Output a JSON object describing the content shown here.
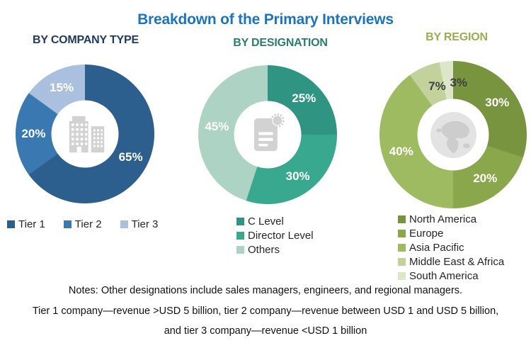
{
  "title": {
    "text": "Breakdown of the Primary Interviews",
    "color": "#1B75BC"
  },
  "chart_data": [
    {
      "type": "donut",
      "title": "BY COMPANY TYPE",
      "title_color": "#1F3A5F",
      "icon": "buildings-icon",
      "legend_position": "bottom-horizontal",
      "slices": [
        {
          "label": "Tier 1",
          "value": 65,
          "unit": "%",
          "color": "#2D5F8E",
          "label_color": "#FFFFFF"
        },
        {
          "label": "Tier 2",
          "value": 20,
          "unit": "%",
          "color": "#3A78B2",
          "label_color": "#FFFFFF"
        },
        {
          "label": "Tier 3",
          "value": 15,
          "unit": "%",
          "color": "#ABC0DE",
          "label_color": "#FFFFFF"
        }
      ]
    },
    {
      "type": "donut",
      "title": "BY DESIGNATION",
      "title_color": "#2B7D6C",
      "icon": "certificate-icon",
      "legend_position": "bottom-vertical",
      "slices": [
        {
          "label": "C Level",
          "value": 25,
          "unit": "%",
          "color": "#2F9481",
          "label_color": "#FFFFFF"
        },
        {
          "label": "Director Level",
          "value": 30,
          "unit": "%",
          "color": "#38A98E",
          "label_color": "#FFFFFF"
        },
        {
          "label": "Others",
          "value": 45,
          "unit": "%",
          "color": "#ADD3C5",
          "label_color": "#FFFFFF"
        }
      ]
    },
    {
      "type": "donut",
      "title": "BY REGION",
      "title_color": "#9AAD52",
      "icon": "globe-icon",
      "legend_position": "bottom-vertical",
      "slices": [
        {
          "label": "North America",
          "value": 30,
          "unit": "%",
          "color": "#78943E",
          "label_color": "#FFFFFF"
        },
        {
          "label": "Europe",
          "value": 20,
          "unit": "%",
          "color": "#8BA74C",
          "label_color": "#FFFFFF"
        },
        {
          "label": "Asia Pacific",
          "value": 40,
          "unit": "%",
          "color": "#9FBB61",
          "label_color": "#FFFFFF"
        },
        {
          "label": "Middle East & Africa",
          "value": 7,
          "unit": "%",
          "color": "#C3D29C",
          "label_color": "#3F3F3F"
        },
        {
          "label": "South America",
          "value": 3,
          "unit": "%",
          "color": "#DDE6C9",
          "label_color": "#3F3F3F"
        }
      ]
    }
  ],
  "notes": {
    "line1": "Notes: Other designations include sales managers, engineers, and regional managers.",
    "line2": "Tier 1 company—revenue >USD 5 billion, tier 2 company—revenue between USD 1 and USD 5 billion,",
    "line3": "and tier 3 company—revenue <USD 1 billion"
  }
}
